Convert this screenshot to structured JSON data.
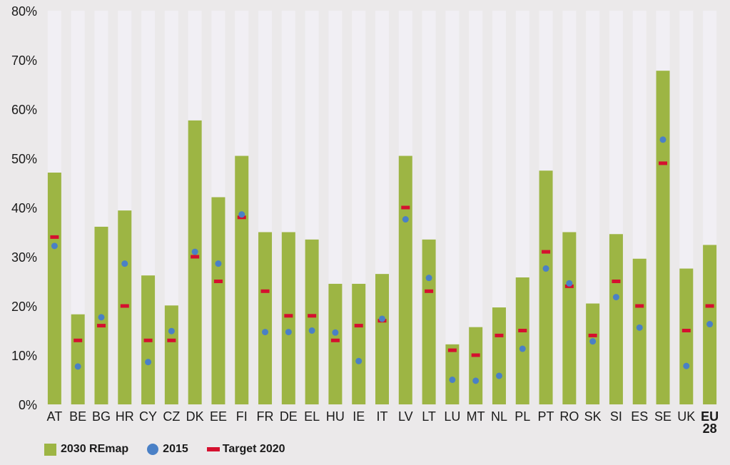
{
  "chart_data": {
    "type": "bar",
    "categories": [
      "AT",
      "BE",
      "BG",
      "HR",
      "CY",
      "CZ",
      "DK",
      "EE",
      "FI",
      "FR",
      "DE",
      "EL",
      "HU",
      "IE",
      "IT",
      "LV",
      "LT",
      "LU",
      "MT",
      "NL",
      "PL",
      "PT",
      "RO",
      "SK",
      "SI",
      "ES",
      "SE",
      "UK",
      "EU 28"
    ],
    "series": [
      {
        "name": "2030 REmap",
        "kind": "bar",
        "values": [
          47.1,
          18.3,
          36.1,
          39.4,
          26.2,
          20.1,
          57.7,
          42.1,
          50.5,
          35.0,
          35.0,
          33.5,
          24.5,
          24.5,
          26.5,
          50.5,
          33.5,
          12.2,
          15.7,
          19.7,
          25.8,
          47.5,
          35.0,
          20.5,
          34.6,
          29.6,
          67.8,
          27.6,
          32.4
        ]
      },
      {
        "name": "2015",
        "kind": "dot",
        "values": [
          32.2,
          7.7,
          17.7,
          28.6,
          8.6,
          14.9,
          31.0,
          28.6,
          38.6,
          14.7,
          14.7,
          15.0,
          14.6,
          8.8,
          17.4,
          37.6,
          25.7,
          5.0,
          4.8,
          5.8,
          11.3,
          27.6,
          24.6,
          12.8,
          21.8,
          15.6,
          53.8,
          7.8,
          16.3
        ]
      },
      {
        "name": "Target 2020",
        "kind": "dash",
        "values": [
          34.0,
          13.0,
          16.0,
          20.0,
          13.0,
          13.0,
          30.0,
          25.0,
          38.0,
          23.0,
          18.0,
          18.0,
          13.0,
          16.0,
          17.0,
          40.0,
          23.0,
          11.0,
          10.0,
          14.0,
          15.0,
          31.0,
          24.0,
          14.0,
          25.0,
          20.0,
          49.0,
          15.0,
          20.0
        ]
      }
    ],
    "yticks": [
      "0%",
      "10%",
      "20%",
      "30%",
      "40%",
      "50%",
      "60%",
      "70%",
      "80%"
    ],
    "ylim": [
      0,
      80
    ],
    "grid": false,
    "legend_position": "bottom-left",
    "colors": {
      "bar": "#9db544",
      "track": "#f1eff4",
      "dot": "#4a80c6",
      "dash": "#d5102f"
    }
  },
  "legend": {
    "items": [
      {
        "label": "2030 REmap",
        "marker": "bar"
      },
      {
        "label": "2015",
        "marker": "dot"
      },
      {
        "label": "Target 2020",
        "marker": "dash"
      }
    ]
  }
}
